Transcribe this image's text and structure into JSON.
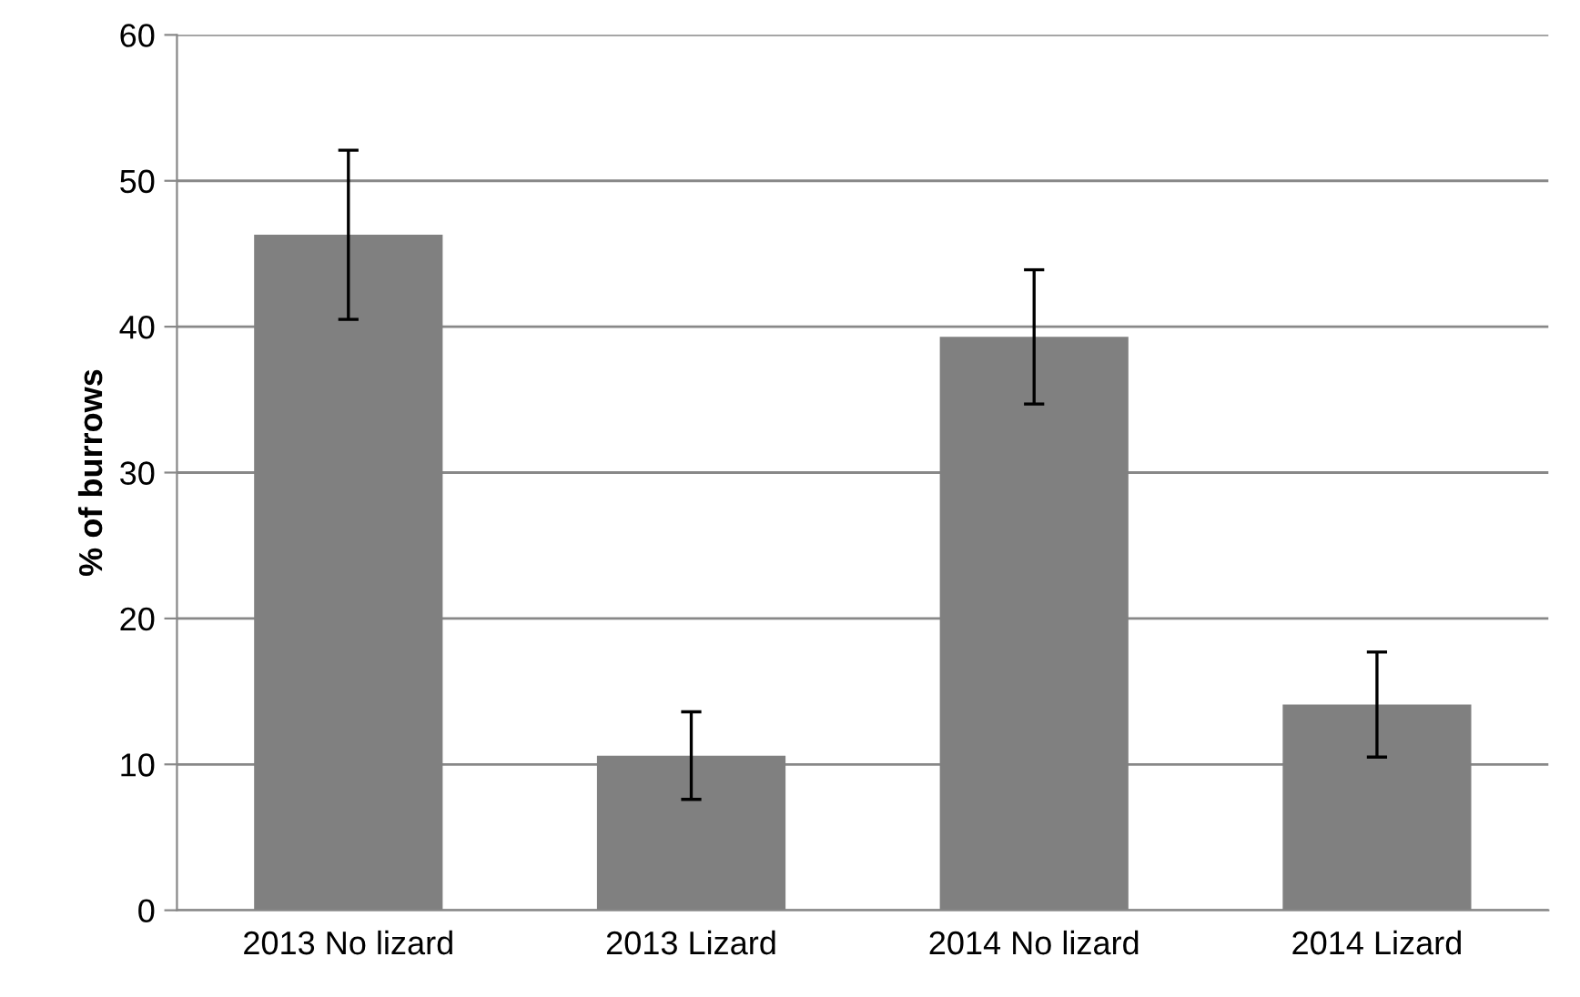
{
  "chart_data": {
    "type": "bar",
    "ylabel": "% of burrows",
    "categories": [
      "2013 No lizard",
      "2013 Lizard",
      "2014 No lizard",
      "2014 Lizard"
    ],
    "values": [
      46.3,
      10.6,
      39.3,
      14.1
    ],
    "errors": [
      5.8,
      3.0,
      4.6,
      3.6
    ],
    "color": "#808080",
    "ylim": [
      0,
      60
    ],
    "yticks": [
      0,
      10,
      20,
      30,
      40,
      50,
      60
    ],
    "grid": "y"
  }
}
